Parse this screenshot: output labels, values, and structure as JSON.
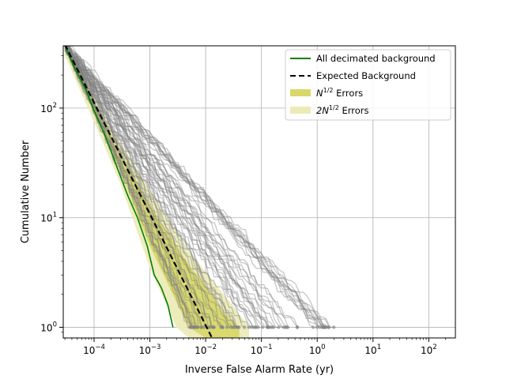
{
  "chart_data": {
    "type": "line",
    "xlabel": "Inverse False Alarm Rate (yr)",
    "ylabel": "Cumulative Number",
    "xscale": "log",
    "yscale": "log",
    "xlim": [
      2.8e-05,
      300
    ],
    "ylim": [
      0.8,
      370
    ],
    "grid": true,
    "legend_position": "top-right",
    "x_ticks": [
      {
        "value": 0.0001,
        "base": "10",
        "exp": "−4"
      },
      {
        "value": 0.001,
        "base": "10",
        "exp": "−3"
      },
      {
        "value": 0.01,
        "base": "10",
        "exp": "−2"
      },
      {
        "value": 0.1,
        "base": "10",
        "exp": "−1"
      },
      {
        "value": 1,
        "base": "10",
        "exp": "0"
      },
      {
        "value": 10,
        "base": "10",
        "exp": "1"
      },
      {
        "value": 100,
        "base": "10",
        "exp": "2"
      }
    ],
    "y_ticks": [
      {
        "value": 1,
        "base": "10",
        "exp": "0"
      },
      {
        "value": 10,
        "base": "10",
        "exp": "1"
      },
      {
        "value": 100,
        "base": "10",
        "exp": "2"
      }
    ],
    "legend": [
      {
        "kind": "line",
        "label": "All decimated background",
        "color": "#008000",
        "dashed": false
      },
      {
        "kind": "line",
        "label": "Expected Background",
        "color": "#000000",
        "dashed": true
      },
      {
        "kind": "patch",
        "label": "Errors",
        "prefix": "N",
        "sup": "1/2",
        "color": "#d8d86a"
      },
      {
        "kind": "patch",
        "label": "Errors",
        "prefix": "2N",
        "sup": "1/2",
        "color": "#ecebb8"
      }
    ],
    "series": [
      {
        "key": "decimated",
        "color": "#008000",
        "style": "solid",
        "x": [
          3e-05,
          4.5e-05,
          7e-05,
          0.0001,
          0.00016,
          0.00025,
          0.0004,
          0.0006,
          0.0009,
          0.0012,
          0.0016,
          0.0021,
          0.0026
        ],
        "y": [
          370,
          230,
          150,
          95,
          55,
          30,
          16,
          10,
          5.5,
          3.0,
          2.3,
          1.6,
          1.0
        ]
      },
      {
        "key": "expected",
        "color": "#000000",
        "style": "dashed",
        "x": [
          3e-05,
          0.013
        ],
        "y": [
          380,
          0.8
        ]
      }
    ],
    "bands": [
      {
        "key": "2N_errors",
        "color": "#ecebb8",
        "x": [
          3e-05,
          0.0001,
          0.0003,
          0.001,
          0.003,
          0.005,
          0.01,
          0.03,
          0.06
        ],
        "lower": [
          300,
          75,
          20,
          3.5,
          1.0,
          0.8,
          0.8,
          0.8,
          0.8
        ],
        "upper": [
          450,
          130,
          48,
          18,
          7.5,
          5.0,
          3.2,
          1.6,
          1.0
        ]
      },
      {
        "key": "N_errors",
        "color": "#d8d86a",
        "x": [
          3e-05,
          0.0001,
          0.0003,
          0.001,
          0.003,
          0.005,
          0.01,
          0.02,
          0.04
        ],
        "lower": [
          340,
          90,
          26,
          5.5,
          1.7,
          1.0,
          0.8,
          0.8,
          0.8
        ],
        "upper": [
          420,
          115,
          40,
          13,
          5.5,
          3.7,
          2.4,
          1.4,
          1.0
        ]
      }
    ],
    "background_trials": {
      "color": "#808080",
      "opacity": 0.42,
      "count": 60,
      "x_start": 3e-05,
      "y_start": 380,
      "x_end_range": [
        0.005,
        2.0
      ],
      "note_marker": "circle"
    }
  }
}
